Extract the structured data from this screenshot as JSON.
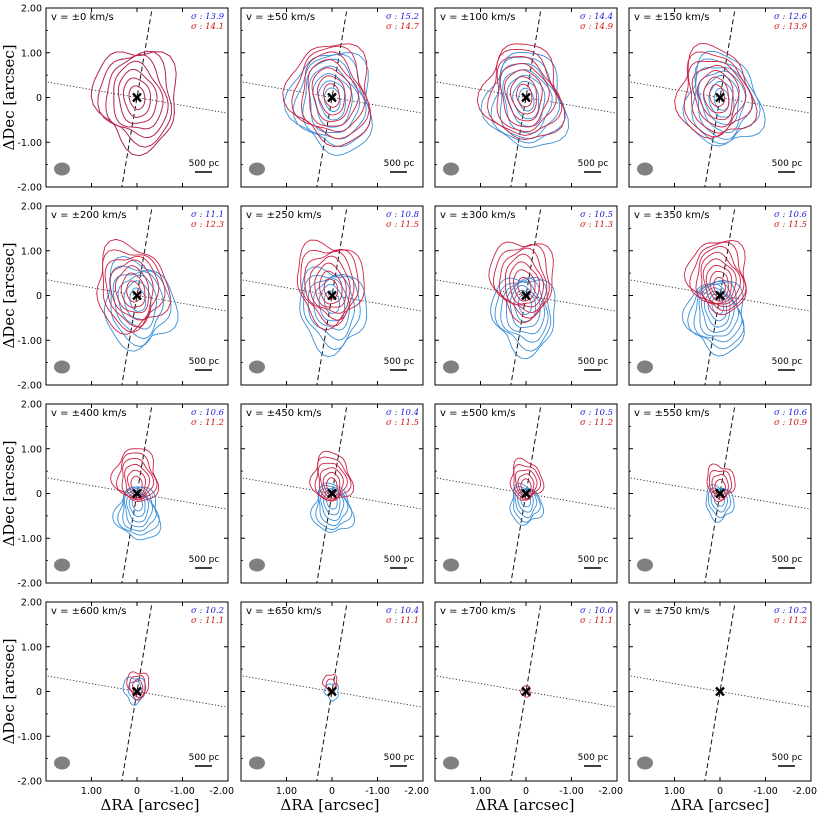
{
  "chart_data": {
    "type": "contour-grid",
    "rows": 4,
    "cols": 4,
    "xlabel": "ΔRA [arcsec]",
    "ylabel": "ΔDec [arcsec]",
    "x_ticks": [
      "1.00",
      "0",
      "-1.00",
      "-2.00"
    ],
    "y_ticks": [
      "2.00",
      "1.00",
      "0",
      "-1.00",
      "-2.00"
    ],
    "xlim": [
      2.0,
      -2.0
    ],
    "ylim": [
      -2.0,
      2.0
    ],
    "scalebar_label": "500 pc",
    "colors": {
      "blue": "#3a8fd8",
      "red": "#cc2244",
      "sigma_blue": "#1a1adc",
      "sigma_red": "#d01010"
    },
    "panels": [
      {
        "v": "v = ±0 km/s",
        "sigma_blue": "σ : 13.9",
        "sigma_red": "σ : 14.1",
        "blue_levels": 7,
        "red_levels": 7,
        "extent": 1.0,
        "blue_offset": [
          0.0,
          0.0
        ],
        "red_offset": [
          0.0,
          0.0
        ]
      },
      {
        "v": "v = ±50 km/s",
        "sigma_blue": "σ : 15.2",
        "sigma_red": "σ : 14.7",
        "blue_levels": 7,
        "red_levels": 7,
        "extent": 1.0,
        "blue_offset": [
          0.0,
          -0.1
        ],
        "red_offset": [
          0.0,
          0.1
        ]
      },
      {
        "v": "v = ±100 km/s",
        "sigma_blue": "σ : 14.4",
        "sigma_red": "σ : 14.9",
        "blue_levels": 7,
        "red_levels": 7,
        "extent": 0.95,
        "blue_offset": [
          0.0,
          -0.1
        ],
        "red_offset": [
          0.05,
          0.1
        ]
      },
      {
        "v": "v = ±150 km/s",
        "sigma_blue": "σ : 12.6",
        "sigma_red": "σ : 13.9",
        "blue_levels": 7,
        "red_levels": 7,
        "extent": 0.9,
        "blue_offset": [
          -0.05,
          -0.1
        ],
        "red_offset": [
          0.1,
          0.1
        ]
      },
      {
        "v": "v = ±200 km/s",
        "sigma_blue": "σ : 11.1",
        "sigma_red": "σ : 12.3",
        "blue_levels": 6,
        "red_levels": 7,
        "extent": 0.85,
        "blue_offset": [
          0.0,
          -0.2
        ],
        "red_offset": [
          0.1,
          0.2
        ]
      },
      {
        "v": "v = ±250 km/s",
        "sigma_blue": "σ : 10.8",
        "sigma_red": "σ : 11.5",
        "blue_levels": 6,
        "red_levels": 7,
        "extent": 0.8,
        "blue_offset": [
          0.05,
          -0.3
        ],
        "red_offset": [
          0.0,
          0.3
        ]
      },
      {
        "v": "v = ±300 km/s",
        "sigma_blue": "σ : 10.5",
        "sigma_red": "σ : 11.3",
        "blue_levels": 7,
        "red_levels": 7,
        "extent": 0.75,
        "blue_offset": [
          0.1,
          -0.4
        ],
        "red_offset": [
          0.0,
          0.4
        ]
      },
      {
        "v": "v = ±350 km/s",
        "sigma_blue": "σ : 10.6",
        "sigma_red": "σ : 11.5",
        "blue_levels": 8,
        "red_levels": 8,
        "extent": 0.7,
        "blue_offset": [
          0.15,
          -0.45
        ],
        "red_offset": [
          -0.05,
          0.45
        ]
      },
      {
        "v": "v = ±400 km/s",
        "sigma_blue": "σ : 10.6",
        "sigma_red": "σ : 11.2",
        "blue_levels": 7,
        "red_levels": 6,
        "extent": 0.5,
        "blue_offset": [
          0.05,
          -0.45
        ],
        "red_offset": [
          -0.05,
          0.4
        ]
      },
      {
        "v": "v = ±450 km/s",
        "sigma_blue": "σ : 10.4",
        "sigma_red": "σ : 11.5",
        "blue_levels": 6,
        "red_levels": 6,
        "extent": 0.45,
        "blue_offset": [
          0.05,
          -0.35
        ],
        "red_offset": [
          -0.05,
          0.35
        ]
      },
      {
        "v": "v = ±500 km/s",
        "sigma_blue": "σ : 10.5",
        "sigma_red": "σ : 11.2",
        "blue_levels": 5,
        "red_levels": 5,
        "extent": 0.35,
        "blue_offset": [
          0.05,
          -0.25
        ],
        "red_offset": [
          -0.05,
          0.3
        ]
      },
      {
        "v": "v = ±550 km/s",
        "sigma_blue": "σ : 10.6",
        "sigma_red": "σ : 10.9",
        "blue_levels": 4,
        "red_levels": 4,
        "extent": 0.3,
        "blue_offset": [
          0.05,
          -0.2
        ],
        "red_offset": [
          -0.05,
          0.25
        ]
      },
      {
        "v": "v = ±600 km/s",
        "sigma_blue": "σ : 10.2",
        "sigma_red": "σ : 11.1",
        "blue_levels": 2,
        "red_levels": 3,
        "extent": 0.22,
        "blue_offset": [
          0.05,
          0.05
        ],
        "red_offset": [
          -0.05,
          0.15
        ]
      },
      {
        "v": "v = ±650 km/s",
        "sigma_blue": "σ : 10.4",
        "sigma_red": "σ : 11.1",
        "blue_levels": 1,
        "red_levels": 2,
        "extent": 0.12,
        "blue_offset": [
          0.0,
          0.0
        ],
        "red_offset": [
          0.0,
          0.2
        ]
      },
      {
        "v": "v = ±700 km/s",
        "sigma_blue": "σ : 10.0",
        "sigma_red": "σ : 11.1",
        "blue_levels": 0,
        "red_levels": 1,
        "extent": 0.06,
        "blue_offset": [
          0.0,
          0.0
        ],
        "red_offset": [
          0.0,
          0.0
        ]
      },
      {
        "v": "v = ±750 km/s",
        "sigma_blue": "σ : 10.2",
        "sigma_red": "σ : 11.2",
        "blue_levels": 0,
        "red_levels": 0,
        "extent": 0.0,
        "blue_offset": [
          0.0,
          0.0
        ],
        "red_offset": [
          0.0,
          0.0
        ]
      }
    ]
  }
}
